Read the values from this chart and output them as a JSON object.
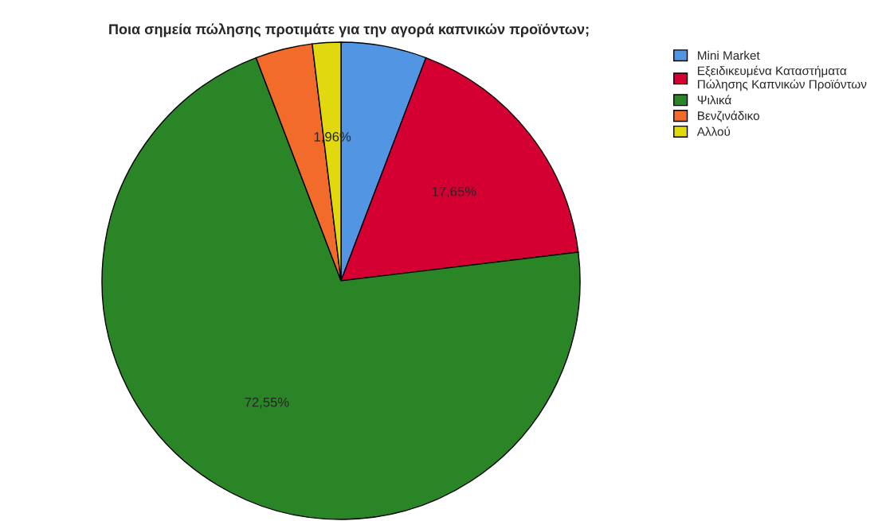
{
  "chart_data": {
    "type": "pie",
    "title": "Ποια σημεία πώλησης προτιμάτε για την αγορά καπνικών προϊόντων;",
    "categories": [
      "Mini Market",
      "Εξειδικευμένα Καταστήματα\nΠώλησης Καπνικών Προϊόντων",
      "Ψιλικά",
      "Βενζινάδικο",
      "Αλλού"
    ],
    "values": [
      5.9,
      17.65,
      72.55,
      3.94,
      1.96
    ],
    "value_labels": [
      null,
      "17,65%",
      "72,55%",
      null,
      "1,96%"
    ],
    "colors": [
      "#5295e3",
      "#d50032",
      "#2a8527",
      "#f26b2b",
      "#e2d810"
    ],
    "legend": "top right"
  }
}
